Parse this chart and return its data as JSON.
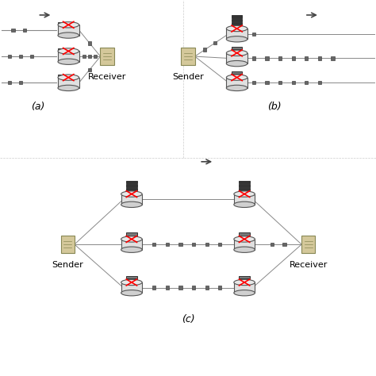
{
  "bg_color": "#ffffff",
  "fig_size": [
    4.74,
    4.74
  ],
  "dpi": 100,
  "router_color": "#c8c8c8",
  "router_edge": "#555555",
  "server_color": "#d4c89a",
  "packet_color": "#666666",
  "queue_color": "#333333",
  "line_color": "#888888",
  "arrow_color": "#444444",
  "label_fontsize": 8,
  "sublabel_fontsize": 9,
  "panels": [
    "(a)",
    "(b)",
    "(c)"
  ]
}
